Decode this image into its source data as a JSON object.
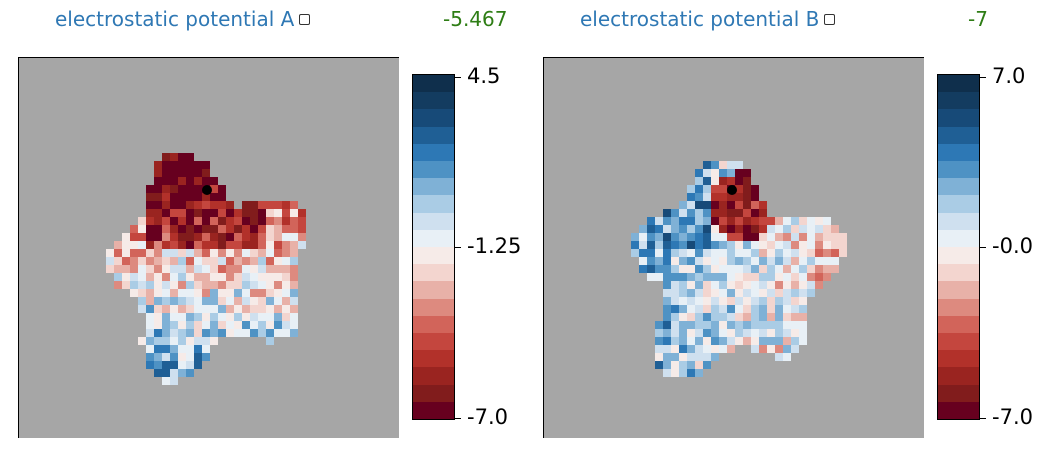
{
  "panels": [
    {
      "title": "electrostatic potential A",
      "value": "-5.467",
      "colorbar": {
        "top": "4.5",
        "mid": "-1.25",
        "bottom": "-7.0"
      }
    },
    {
      "title": "electrostatic potential B",
      "value": "-7",
      "colorbar": {
        "top": "7.0",
        "mid": "-0.0",
        "bottom": "-7.0"
      }
    }
  ],
  "colors": {
    "background": "#a6a6a6",
    "title": "#2f78b4",
    "value": "#2e7d15",
    "scale": [
      "#67001f",
      "#811c1c",
      "#9a2420",
      "#b2312a",
      "#c4463e",
      "#d2645a",
      "#dd8a7f",
      "#e8b1a8",
      "#f3d5cf",
      "#f6ebe8",
      "#e8f0f6",
      "#cfe0ef",
      "#aacce5",
      "#7fb1d6",
      "#4e92c4",
      "#2d78b5",
      "#1f5f95",
      "#174a78",
      "#133c60",
      "#0f2f4c"
    ]
  }
}
